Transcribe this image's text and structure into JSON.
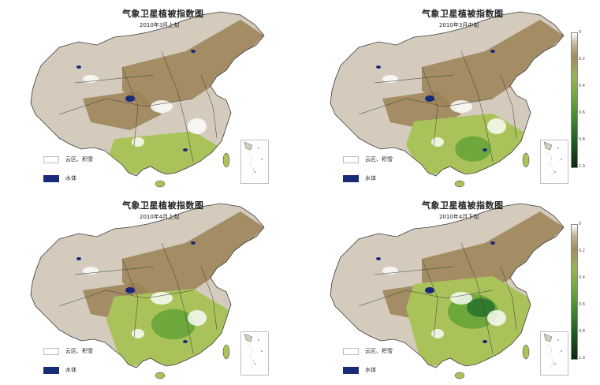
{
  "colors": {
    "desert": "#d4cbbd",
    "brown": "#9b8356",
    "light_green": "#a9c35a",
    "green": "#6ea83c",
    "dark_green": "#2f7a2c",
    "cloud_snow": "#ffffff",
    "water": "#1a2a7a",
    "border": "#3a3a3a"
  },
  "panels": [
    {
      "title": "气象卫星植被指数图",
      "subtitle": "2010年3月上旬",
      "legend_cloud": "云区、积雪",
      "legend_water": "水体",
      "green_extent": 0.18,
      "has_colorbar": false
    },
    {
      "title": "气象卫星植被指数图",
      "subtitle": "2010年3月中旬",
      "legend_cloud": "云区、积雪",
      "legend_water": "水体",
      "green_extent": 0.32,
      "has_colorbar": true
    },
    {
      "title": "气象卫星植被指数图",
      "subtitle": "2010年4月上旬",
      "legend_cloud": "云区、积雪",
      "legend_water": "水体",
      "green_extent": 0.45,
      "has_colorbar": false
    },
    {
      "title": "气象卫星植被指数图",
      "subtitle": "2010年4月下旬",
      "legend_cloud": "云区、积雪",
      "legend_water": "水体",
      "green_extent": 0.55,
      "has_colorbar": true
    }
  ],
  "colorbar_ticks": [
    "0",
    "0.2",
    "0.4",
    "0.6",
    "0.8",
    "1.0"
  ]
}
